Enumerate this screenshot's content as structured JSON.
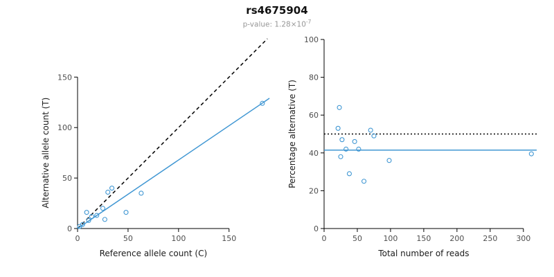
{
  "header": {
    "title": "rs4675904",
    "pvalue_prefix": "p-value: 1.28×10",
    "pvalue_exponent": "-7"
  },
  "colors": {
    "accent_blue": "#4097d3",
    "axis_black": "#000000",
    "tick_label_gray": "#4d4d4d",
    "subtitle_gray": "#979797"
  },
  "chart_data": [
    {
      "type": "scatter",
      "title": "",
      "xlabel": "Reference allele count (C)",
      "ylabel": "Alternative allele count (T)",
      "xlim": [
        0,
        192
      ],
      "ylim": [
        0,
        190
      ],
      "xticks": [
        0,
        50,
        100,
        150
      ],
      "yticks": [
        0,
        50,
        100,
        150
      ],
      "grid": false,
      "point_color": "#4097d3",
      "points": [
        [
          2,
          2
        ],
        [
          5,
          4
        ],
        [
          9,
          16
        ],
        [
          11,
          8
        ],
        [
          14,
          12
        ],
        [
          19,
          13
        ],
        [
          25,
          20
        ],
        [
          27,
          9
        ],
        [
          30,
          36
        ],
        [
          34,
          40
        ],
        [
          48,
          16
        ],
        [
          63,
          35
        ],
        [
          183,
          124
        ]
      ],
      "lines": [
        {
          "name": "identity",
          "style": "dashed",
          "color": "#000000",
          "from": [
            0,
            0
          ],
          "to": [
            188,
            188
          ]
        },
        {
          "name": "fit",
          "style": "solid",
          "color": "#4097d3",
          "from": [
            0,
            0
          ],
          "to": [
            190,
            129
          ]
        }
      ]
    },
    {
      "type": "scatter",
      "title": "",
      "xlabel": "Total number of reads",
      "ylabel": "Percentage alternative (T)",
      "xlim": [
        0,
        320
      ],
      "ylim": [
        0,
        100
      ],
      "xticks": [
        0,
        50,
        100,
        150,
        200,
        250,
        300
      ],
      "yticks": [
        0,
        20,
        40,
        60,
        80,
        100
      ],
      "grid": false,
      "point_color": "#4097d3",
      "points": [
        [
          21,
          53
        ],
        [
          23,
          64
        ],
        [
          25,
          38
        ],
        [
          27,
          47
        ],
        [
          33,
          42
        ],
        [
          38,
          29
        ],
        [
          46,
          46
        ],
        [
          52,
          42
        ],
        [
          60,
          25
        ],
        [
          70,
          52
        ],
        [
          75,
          49
        ],
        [
          98,
          36
        ],
        [
          312,
          39.5
        ]
      ],
      "lines": [
        {
          "name": "expected",
          "style": "dotted",
          "color": "#000000",
          "from": [
            0,
            50
          ],
          "to": [
            320,
            50
          ]
        },
        {
          "name": "fit",
          "style": "solid",
          "color": "#4097d3",
          "from": [
            0,
            41.5
          ],
          "to": [
            320,
            41.5
          ]
        }
      ]
    }
  ]
}
